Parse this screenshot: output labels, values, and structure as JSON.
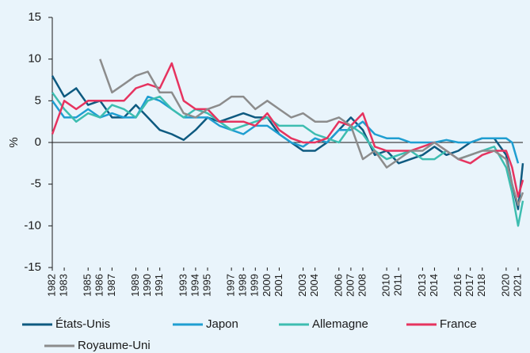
{
  "chart_data": {
    "type": "line",
    "y_label": "%",
    "x": [
      1982,
      1983,
      1984,
      1985,
      1986,
      1987,
      1988,
      1989,
      1990,
      1991,
      1992,
      1993,
      1994,
      1995,
      1996,
      1997,
      1998,
      1999,
      2000,
      2001,
      2002,
      2003,
      2004,
      2005,
      2006,
      2007,
      2008,
      2009,
      2010,
      2011,
      2012,
      2013,
      2014,
      2015,
      2016,
      2017,
      2018,
      2019,
      2020,
      2020.5,
      2021,
      2021.4
    ],
    "xlim": [
      1982,
      2021.4
    ],
    "xticks": [
      1982,
      1983,
      1985,
      1986,
      1987,
      1989,
      1990,
      1991,
      1993,
      1994,
      1995,
      1997,
      1998,
      1999,
      2000,
      2001,
      2003,
      2004,
      2006,
      2007,
      2008,
      2010,
      2011,
      2013,
      2014,
      2016,
      2017,
      2018,
      2020,
      2021
    ],
    "ylim": [
      -15,
      15
    ],
    "yticks": [
      -15,
      -10,
      -5,
      0,
      5,
      10,
      15
    ],
    "series": [
      {
        "name": "États-Unis",
        "color": "#0e5a80",
        "values": [
          8,
          5.5,
          6.5,
          4.5,
          5,
          3,
          3,
          4.5,
          3,
          1.5,
          1,
          0.3,
          1.5,
          3,
          2.5,
          3,
          3.5,
          3,
          3,
          1,
          0,
          -1,
          -1,
          0,
          1.5,
          3,
          1.5,
          -1.5,
          -1,
          -2.5,
          -2,
          -1.5,
          -0.5,
          -1.5,
          -1,
          0,
          0.5,
          0.5,
          -1.5,
          -5,
          -8,
          -2.5
        ]
      },
      {
        "name": "Japon",
        "color": "#1f9ed1",
        "values": [
          5,
          3,
          3,
          4,
          3,
          3.5,
          3,
          3,
          5.5,
          5,
          4,
          3,
          3,
          3,
          2,
          1.5,
          1,
          2,
          2,
          1,
          0,
          -0.5,
          0.5,
          0,
          1.5,
          1.5,
          2.5,
          1,
          0.5,
          0.5,
          0,
          0,
          0,
          0.3,
          0,
          0,
          0.5,
          0.5,
          0.5,
          0,
          -2.5,
          null
        ]
      },
      {
        "name": "Allemagne",
        "color": "#3dbdb0",
        "values": [
          6,
          4,
          2.5,
          3.5,
          3,
          4.5,
          4,
          3,
          5,
          5.5,
          4,
          3,
          4,
          3.5,
          2.5,
          1.5,
          2,
          2.5,
          3,
          2,
          2,
          2,
          1,
          0.5,
          0,
          2,
          1,
          -1,
          -2,
          -1.5,
          -1,
          -2,
          -2,
          -1,
          -2,
          -1.5,
          -1,
          -0.5,
          -3,
          -6,
          -10,
          -7
        ]
      },
      {
        "name": "France",
        "color": "#e6335f",
        "values": [
          1,
          5,
          4,
          5,
          5,
          5,
          5,
          6.5,
          7,
          6.5,
          9.5,
          5,
          4,
          4,
          2.5,
          2.5,
          2.5,
          2,
          3.5,
          1.5,
          0.5,
          0,
          0,
          0.5,
          2.5,
          2,
          3.5,
          -0.5,
          -1,
          -1,
          -1,
          -0.5,
          0,
          -1,
          -2,
          -2.5,
          -1.5,
          -1,
          -1,
          -3,
          -6.5,
          -4.5
        ]
      },
      {
        "name": "Royaume-Uni",
        "color": "#8c8c8c",
        "values": [
          null,
          null,
          null,
          null,
          10,
          6,
          7,
          8,
          8.5,
          6,
          6,
          3.5,
          3,
          4,
          4.5,
          5.5,
          5.5,
          4,
          5,
          4,
          3,
          3.5,
          2.5,
          2.5,
          3,
          2,
          -2,
          -1,
          -3,
          -2,
          -1,
          -1,
          0,
          -1,
          -2,
          -1.5,
          -1,
          -1,
          -2,
          -5,
          -7.5,
          -6
        ]
      }
    ]
  }
}
